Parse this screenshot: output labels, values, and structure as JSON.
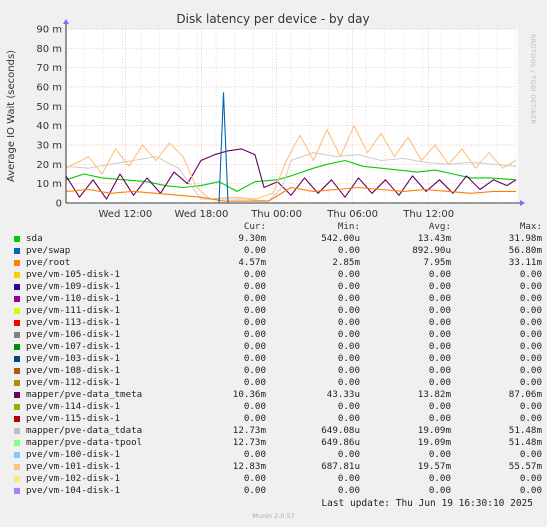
{
  "chart_data": {
    "type": "line",
    "title": "Disk latency per device - by day",
    "ylabel": "Average IO Wait (seconds)",
    "ylim": [
      0,
      90
    ],
    "yticks": [
      "0",
      "10 m",
      "20 m",
      "30 m",
      "40 m",
      "50 m",
      "60 m",
      "70 m",
      "80 m",
      "90 m"
    ],
    "yticks_values": [
      0,
      10,
      20,
      30,
      40,
      50,
      60,
      70,
      80,
      90
    ],
    "xlim": [
      0,
      1
    ],
    "xticks": [
      "Wed 12:00",
      "Wed 18:00",
      "Thu 00:00",
      "Thu 06:00",
      "Thu 12:00"
    ],
    "xticks_at": [
      0.132,
      0.301,
      0.468,
      0.637,
      0.806
    ],
    "grid": true,
    "series": [
      {
        "name": "sda",
        "color": "#00CC00",
        "points": [
          [
            0.0,
            12
          ],
          [
            0.04,
            15
          ],
          [
            0.08,
            13
          ],
          [
            0.13,
            12
          ],
          [
            0.18,
            11
          ],
          [
            0.22,
            9
          ],
          [
            0.26,
            8
          ],
          [
            0.3,
            9
          ],
          [
            0.34,
            11
          ],
          [
            0.38,
            6
          ],
          [
            0.42,
            11
          ],
          [
            0.47,
            12
          ],
          [
            0.5,
            14
          ],
          [
            0.55,
            18
          ],
          [
            0.58,
            20
          ],
          [
            0.62,
            22
          ],
          [
            0.66,
            19
          ],
          [
            0.7,
            18
          ],
          [
            0.74,
            17
          ],
          [
            0.78,
            16
          ],
          [
            0.82,
            17
          ],
          [
            0.86,
            15
          ],
          [
            0.9,
            13
          ],
          [
            0.94,
            13
          ],
          [
            1.0,
            12
          ]
        ]
      },
      {
        "name": "mapper/pve-data_tmeta",
        "color": "#660066",
        "points": [
          [
            0.0,
            14
          ],
          [
            0.03,
            3
          ],
          [
            0.06,
            12
          ],
          [
            0.09,
            2
          ],
          [
            0.12,
            15
          ],
          [
            0.15,
            4
          ],
          [
            0.18,
            13
          ],
          [
            0.21,
            5
          ],
          [
            0.24,
            16
          ],
          [
            0.27,
            10
          ],
          [
            0.3,
            22
          ],
          [
            0.33,
            25
          ],
          [
            0.36,
            27
          ],
          [
            0.39,
            28
          ],
          [
            0.42,
            25
          ],
          [
            0.44,
            8
          ],
          [
            0.47,
            11
          ],
          [
            0.5,
            4
          ],
          [
            0.53,
            13
          ],
          [
            0.56,
            5
          ],
          [
            0.59,
            12
          ],
          [
            0.62,
            3
          ],
          [
            0.65,
            13
          ],
          [
            0.68,
            5
          ],
          [
            0.71,
            12
          ],
          [
            0.74,
            4
          ],
          [
            0.77,
            14
          ],
          [
            0.8,
            6
          ],
          [
            0.83,
            12
          ],
          [
            0.86,
            5
          ],
          [
            0.89,
            14
          ],
          [
            0.92,
            7
          ],
          [
            0.95,
            12
          ],
          [
            0.98,
            9
          ],
          [
            1.0,
            12
          ]
        ]
      },
      {
        "name": "mapper/pve-data_tdata",
        "color": "#D0D0D0",
        "points": [
          [
            0.0,
            19
          ],
          [
            0.05,
            18
          ],
          [
            0.1,
            20
          ],
          [
            0.15,
            22
          ],
          [
            0.2,
            24
          ],
          [
            0.25,
            18
          ],
          [
            0.3,
            2
          ],
          [
            0.35,
            2
          ],
          [
            0.4,
            2
          ],
          [
            0.45,
            1
          ],
          [
            0.48,
            8
          ],
          [
            0.5,
            22
          ],
          [
            0.55,
            26
          ],
          [
            0.6,
            24
          ],
          [
            0.65,
            25
          ],
          [
            0.7,
            22
          ],
          [
            0.75,
            23
          ],
          [
            0.8,
            21
          ],
          [
            0.85,
            20
          ],
          [
            0.9,
            21
          ],
          [
            0.95,
            20
          ],
          [
            1.0,
            19
          ]
        ]
      },
      {
        "name": "pve/vm-101-disk-1",
        "color": "#FFC080",
        "points": [
          [
            0.0,
            18
          ],
          [
            0.05,
            24
          ],
          [
            0.08,
            15
          ],
          [
            0.11,
            28
          ],
          [
            0.14,
            19
          ],
          [
            0.17,
            30
          ],
          [
            0.2,
            22
          ],
          [
            0.23,
            31
          ],
          [
            0.26,
            24
          ],
          [
            0.29,
            8
          ],
          [
            0.32,
            2
          ],
          [
            0.37,
            3
          ],
          [
            0.42,
            2
          ],
          [
            0.46,
            5
          ],
          [
            0.49,
            22
          ],
          [
            0.52,
            35
          ],
          [
            0.55,
            22
          ],
          [
            0.58,
            38
          ],
          [
            0.61,
            24
          ],
          [
            0.64,
            40
          ],
          [
            0.67,
            26
          ],
          [
            0.7,
            36
          ],
          [
            0.73,
            24
          ],
          [
            0.76,
            34
          ],
          [
            0.79,
            22
          ],
          [
            0.82,
            30
          ],
          [
            0.85,
            20
          ],
          [
            0.88,
            28
          ],
          [
            0.91,
            18
          ],
          [
            0.94,
            26
          ],
          [
            0.97,
            18
          ],
          [
            1.0,
            22
          ]
        ]
      },
      {
        "name": "pve/root",
        "color": "#FF7F00",
        "points": [
          [
            0.0,
            6
          ],
          [
            0.05,
            7
          ],
          [
            0.1,
            5
          ],
          [
            0.15,
            6
          ],
          [
            0.2,
            5
          ],
          [
            0.25,
            4
          ],
          [
            0.3,
            3
          ],
          [
            0.35,
            1
          ],
          [
            0.4,
            1
          ],
          [
            0.45,
            1
          ],
          [
            0.5,
            8
          ],
          [
            0.55,
            6
          ],
          [
            0.6,
            7
          ],
          [
            0.65,
            8
          ],
          [
            0.7,
            7
          ],
          [
            0.75,
            6
          ],
          [
            0.8,
            7
          ],
          [
            0.85,
            6
          ],
          [
            0.9,
            5
          ],
          [
            0.95,
            6
          ],
          [
            1.0,
            6
          ]
        ]
      },
      {
        "name": "pve/swap",
        "color": "#0066B3",
        "points": [
          [
            0.0,
            0
          ],
          [
            0.05,
            0
          ],
          [
            0.1,
            0
          ],
          [
            0.25,
            0
          ],
          [
            0.34,
            0
          ],
          [
            0.35,
            57
          ],
          [
            0.36,
            0
          ],
          [
            0.5,
            0
          ],
          [
            1.0,
            0
          ]
        ]
      }
    ]
  },
  "right_text": "RRDTOOL / TOBI OETIKER",
  "table": {
    "headers": [
      "Cur:",
      "Min:",
      "Avg:",
      "Max:"
    ],
    "rows": [
      {
        "name": "sda",
        "color": "#00CC00",
        "cur": "9.30m",
        "min": "542.00u",
        "avg": "13.43m",
        "max": "31.98m"
      },
      {
        "name": "pve/swap",
        "color": "#0066B3",
        "cur": "0.00",
        "min": "0.00",
        "avg": "892.90u",
        "max": "56.80m"
      },
      {
        "name": "pve/root",
        "color": "#FF8000",
        "cur": "4.57m",
        "min": "2.85m",
        "avg": "7.95m",
        "max": "33.11m"
      },
      {
        "name": "pve/vm-105-disk-1",
        "color": "#FFCC00",
        "cur": "0.00",
        "min": "0.00",
        "avg": "0.00",
        "max": "0.00"
      },
      {
        "name": "pve/vm-109-disk-1",
        "color": "#330099",
        "cur": "0.00",
        "min": "0.00",
        "avg": "0.00",
        "max": "0.00"
      },
      {
        "name": "pve/vm-110-disk-1",
        "color": "#990099",
        "cur": "0.00",
        "min": "0.00",
        "avg": "0.00",
        "max": "0.00"
      },
      {
        "name": "pve/vm-111-disk-1",
        "color": "#CCFF00",
        "cur": "0.00",
        "min": "0.00",
        "avg": "0.00",
        "max": "0.00"
      },
      {
        "name": "pve/vm-113-disk-1",
        "color": "#FF0000",
        "cur": "0.00",
        "min": "0.00",
        "avg": "0.00",
        "max": "0.00"
      },
      {
        "name": "pve/vm-106-disk-1",
        "color": "#808080",
        "cur": "0.00",
        "min": "0.00",
        "avg": "0.00",
        "max": "0.00"
      },
      {
        "name": "pve/vm-107-disk-1",
        "color": "#008F00",
        "cur": "0.00",
        "min": "0.00",
        "avg": "0.00",
        "max": "0.00"
      },
      {
        "name": "pve/vm-103-disk-1",
        "color": "#00487D",
        "cur": "0.00",
        "min": "0.00",
        "avg": "0.00",
        "max": "0.00"
      },
      {
        "name": "pve/vm-108-disk-1",
        "color": "#B35A00",
        "cur": "0.00",
        "min": "0.00",
        "avg": "0.00",
        "max": "0.00"
      },
      {
        "name": "pve/vm-112-disk-1",
        "color": "#B38F00",
        "cur": "0.00",
        "min": "0.00",
        "avg": "0.00",
        "max": "0.00"
      },
      {
        "name": "mapper/pve-data_tmeta",
        "color": "#6B006B",
        "cur": "10.36m",
        "min": "43.33u",
        "avg": "13.82m",
        "max": "87.06m"
      },
      {
        "name": "pve/vm-114-disk-1",
        "color": "#8FB300",
        "cur": "0.00",
        "min": "0.00",
        "avg": "0.00",
        "max": "0.00"
      },
      {
        "name": "pve/vm-115-disk-1",
        "color": "#B30000",
        "cur": "0.00",
        "min": "0.00",
        "avg": "0.00",
        "max": "0.00"
      },
      {
        "name": "mapper/pve-data_tdata",
        "color": "#BEBEBE",
        "cur": "12.73m",
        "min": "649.08u",
        "avg": "19.09m",
        "max": "51.48m"
      },
      {
        "name": "mapper/pve-data-tpool",
        "color": "#80FF80",
        "cur": "12.73m",
        "min": "649.86u",
        "avg": "19.09m",
        "max": "51.48m"
      },
      {
        "name": "pve/vm-100-disk-1",
        "color": "#80C9FF",
        "cur": "0.00",
        "min": "0.00",
        "avg": "0.00",
        "max": "0.00"
      },
      {
        "name": "pve/vm-101-disk-1",
        "color": "#FFC080",
        "cur": "12.83m",
        "min": "687.81u",
        "avg": "19.57m",
        "max": "55.57m"
      },
      {
        "name": "pve/vm-102-disk-1",
        "color": "#FFE680",
        "cur": "0.00",
        "min": "0.00",
        "avg": "0.00",
        "max": "0.00"
      },
      {
        "name": "pve/vm-104-disk-1",
        "color": "#AA80FF",
        "cur": "0.00",
        "min": "0.00",
        "avg": "0.00",
        "max": "0.00"
      }
    ]
  },
  "last_update": "Last update: Thu Jun 19 16:30:10 2025",
  "version": "Munin 2.0.57"
}
